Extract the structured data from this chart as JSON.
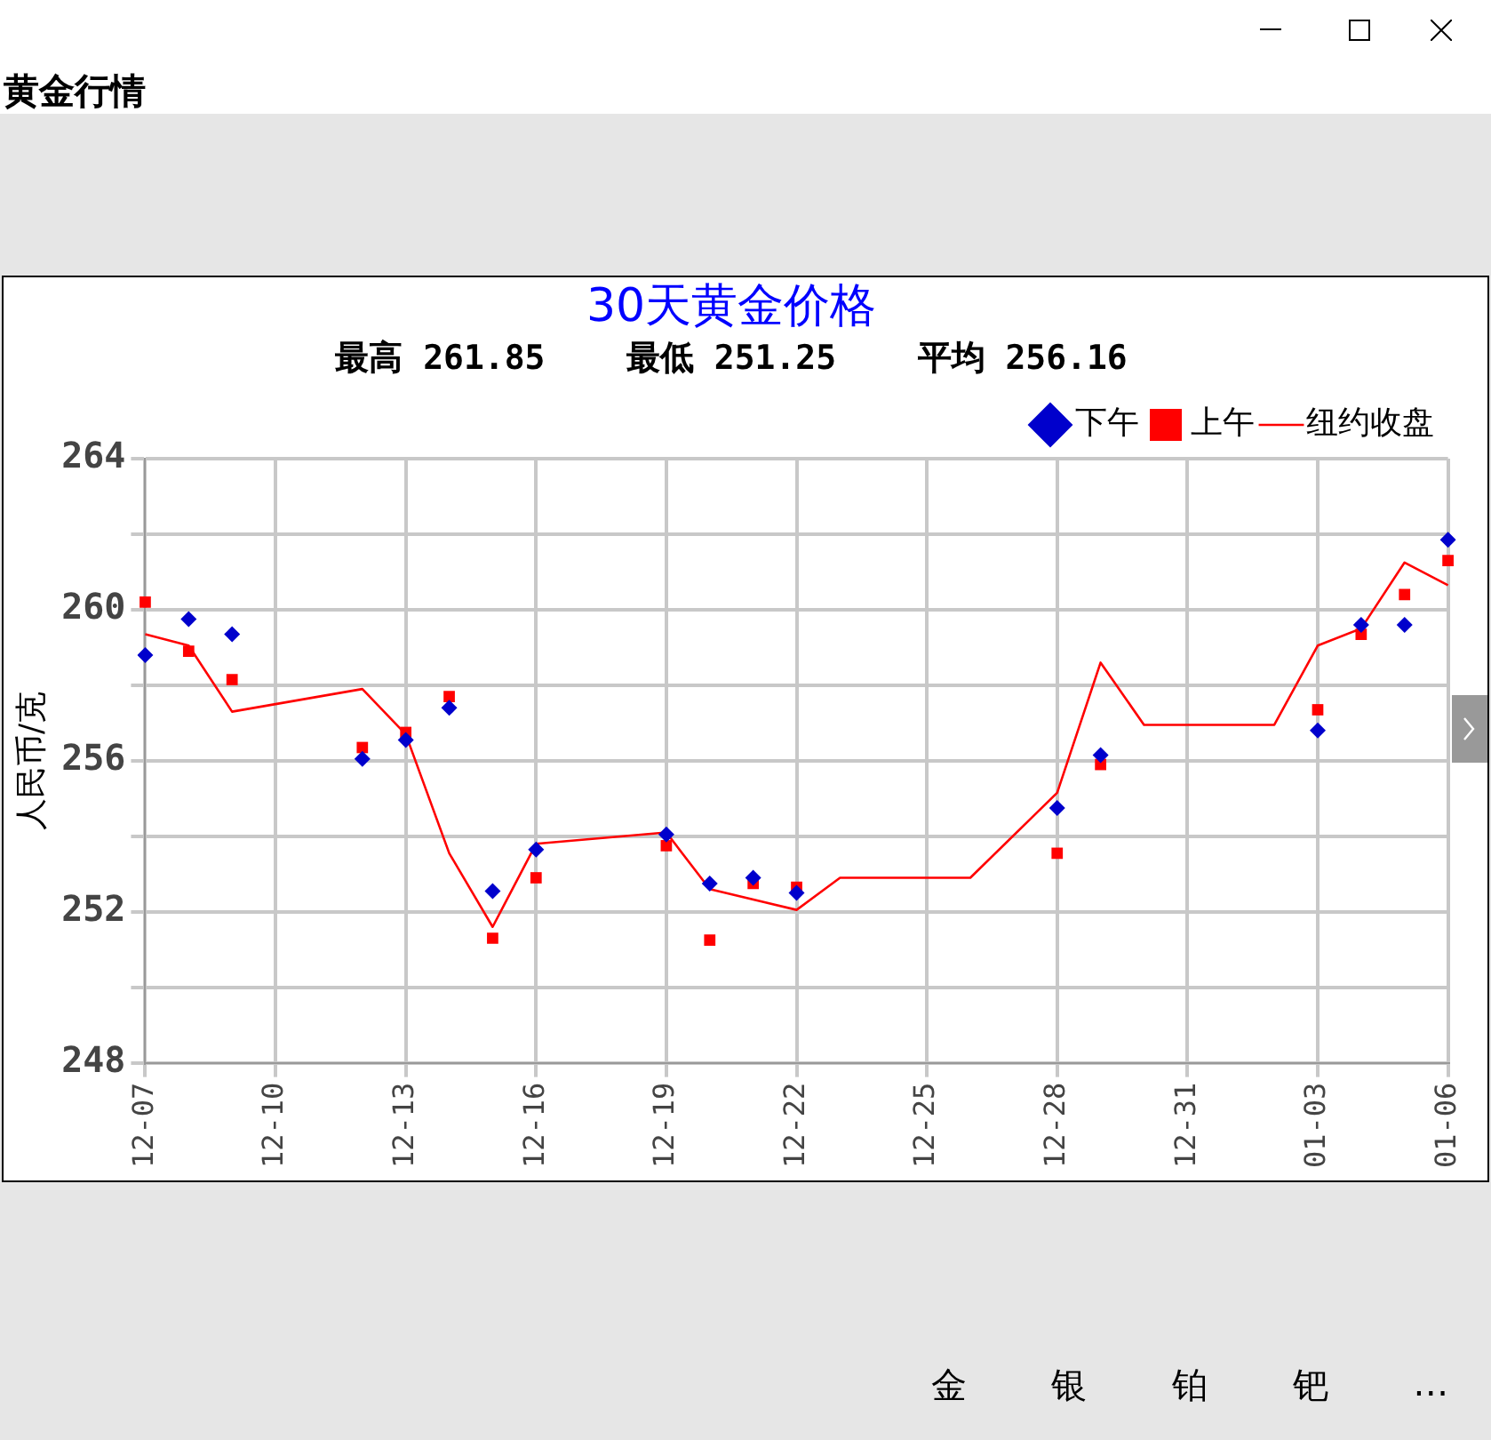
{
  "chart_data": {
    "type": "line",
    "title": "30天黄金价格",
    "subtitle": "最高 261.85    最低 251.25    平均 256.16",
    "ylabel": "人民币/克",
    "categories": [
      "12-07",
      null,
      null,
      "12-10",
      null,
      null,
      "12-13",
      null,
      null,
      "12-16",
      null,
      null,
      "12-19",
      null,
      null,
      "12-22",
      null,
      null,
      "12-25",
      null,
      null,
      "12-28",
      null,
      null,
      "12-31",
      null,
      null,
      "01-03",
      null,
      null,
      "01-06"
    ],
    "series": [
      {
        "name": "纽约收盘",
        "type": "line",
        "color": "#ff0000",
        "marker": "none",
        "values": [
          259.35,
          259.05,
          257.3,
          null,
          null,
          257.9,
          256.7,
          253.55,
          251.6,
          253.8,
          null,
          null,
          254.1,
          252.6,
          null,
          252.05,
          252.9,
          null,
          null,
          252.9,
          null,
          255.15,
          258.6,
          256.95,
          null,
          null,
          256.95,
          259.05,
          259.5,
          261.25,
          260.65
        ]
      },
      {
        "name": "上午",
        "type": "scatter",
        "color": "#ff0000",
        "marker": "square",
        "values": [
          260.2,
          258.9,
          258.15,
          null,
          null,
          256.35,
          256.75,
          257.7,
          251.3,
          252.9,
          null,
          null,
          253.75,
          251.25,
          252.75,
          252.65,
          null,
          null,
          null,
          null,
          null,
          253.55,
          255.9,
          null,
          null,
          null,
          null,
          257.35,
          259.35,
          260.4,
          261.3
        ]
      },
      {
        "name": "下午",
        "type": "scatter",
        "color": "#0000cc",
        "marker": "diamond",
        "values": [
          258.8,
          259.75,
          259.35,
          null,
          null,
          256.05,
          256.55,
          257.4,
          252.55,
          253.65,
          null,
          null,
          254.05,
          252.75,
          252.9,
          252.5,
          null,
          null,
          null,
          null,
          null,
          254.75,
          256.15,
          null,
          null,
          null,
          null,
          256.8,
          259.6,
          259.6,
          261.85
        ]
      }
    ],
    "ylim": [
      248,
      264
    ],
    "yticks": [
      248,
      {
        "value": 250,
        "label": null
      },
      252,
      {
        "value": 254,
        "label": null
      },
      256,
      {
        "value": 258,
        "label": null
      },
      260,
      {
        "value": 262,
        "label": null
      },
      264
    ],
    "grid": true,
    "legend": "top right",
    "annotations": [
      "黄金行情",
      "金",
      "银",
      "铂",
      "钯",
      "…"
    ]
  }
}
